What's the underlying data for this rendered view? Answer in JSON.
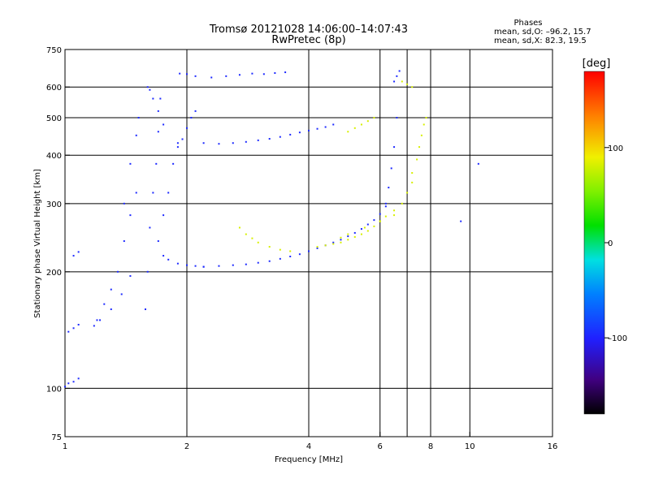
{
  "chart_data": {
    "type": "scatter",
    "title": "Tromsø 20121028 14:06:00–14:07:43",
    "subtitle": "RwPretec (8p)",
    "xlabel": "Frequency [MHz]",
    "ylabel": "Stationary phase Virtual Height [km]",
    "x_scale": "log",
    "y_scale": "log",
    "xlim": [
      1,
      16
    ],
    "ylim": [
      75,
      750
    ],
    "x_ticks": [
      1,
      2,
      4,
      6,
      8,
      10,
      16
    ],
    "x_tick_labels": [
      "1",
      "2",
      "4",
      "6",
      "8",
      "10",
      "16"
    ],
    "x_grid_lines": [
      2,
      4,
      6,
      7,
      8,
      10,
      16
    ],
    "y_ticks": [
      75,
      100,
      200,
      300,
      400,
      500,
      600,
      750
    ],
    "y_tick_labels": [
      "75",
      "100",
      "200",
      "300",
      "400",
      "500",
      "600",
      "750"
    ],
    "y_grid_lines": [
      100,
      200,
      300,
      400,
      500,
      600
    ],
    "grid": true,
    "stats": {
      "heading": "Phases",
      "line1": "mean, sd,O: –96.2, 15.7",
      "line2": "mean, sd,X:  82.3, 19.5"
    },
    "colorbar": {
      "label": "[deg]",
      "range": [
        -180,
        180
      ],
      "ticks": [
        100,
        0,
        -100
      ],
      "tick_labels": [
        "100",
        "0",
        "–100"
      ]
    },
    "colors": {
      "o_mode": "#1a3cff",
      "x_mode": "#c8e614"
    },
    "series": [
      {
        "mode": "O",
        "phase": -96,
        "traces": [
          {
            "f": [
              1.0,
              1.02,
              1.05,
              1.08
            ],
            "h": [
              101,
              103,
              104,
              106
            ]
          },
          {
            "f": [
              1.02,
              1.05,
              1.08
            ],
            "h": [
              140,
              143,
              146
            ]
          },
          {
            "f": [
              1.05,
              1.08
            ],
            "h": [
              220,
              225
            ]
          },
          {
            "f": [
              1.2,
              1.25,
              1.3,
              1.35,
              1.4,
              1.45,
              1.5
            ],
            "h": [
              150,
              165,
              180,
              200,
              240,
              280,
              320
            ]
          },
          {
            "f": [
              1.18,
              1.22,
              1.3,
              1.38,
              1.45
            ],
            "h": [
              145,
              150,
              160,
              175,
              195
            ]
          },
          {
            "f": [
              1.4,
              1.45,
              1.5,
              1.52
            ],
            "h": [
              300,
              380,
              450,
              500
            ]
          },
          {
            "f": [
              1.58,
              1.6,
              1.62,
              1.65,
              1.68,
              1.7,
              1.72
            ],
            "h": [
              160,
              200,
              260,
              320,
              380,
              460,
              560
            ]
          },
          {
            "f": [
              1.6,
              1.62,
              1.65,
              1.7,
              1.75
            ],
            "h": [
              600,
              590,
              560,
              520,
              480
            ]
          },
          {
            "f": [
              1.75,
              1.8,
              1.9,
              2.0,
              2.1,
              2.2
            ],
            "h": [
              220,
              215,
              210,
              208,
              207,
              206
            ]
          },
          {
            "f": [
              1.7,
              1.75,
              1.8,
              1.85,
              1.9
            ],
            "h": [
              240,
              280,
              320,
              380,
              430
            ]
          },
          {
            "f": [
              2.2,
              2.4,
              2.6,
              2.8,
              3.0,
              3.2,
              3.4,
              3.6,
              3.8,
              4.0,
              4.2,
              4.4,
              4.6,
              4.8,
              5.0,
              5.2,
              5.4,
              5.6,
              5.8,
              6.0,
              6.2
            ],
            "h": [
              206,
              207,
              208,
              209,
              211,
              213,
              216,
              219,
              222,
              226,
              230,
              234,
              238,
              242,
              247,
              252,
              258,
              265,
              272,
              282,
              295
            ]
          },
          {
            "f": [
              6.2,
              6.3,
              6.4,
              6.5,
              6.6
            ],
            "h": [
              300,
              330,
              370,
              420,
              500
            ]
          },
          {
            "f": [
              1.9,
              1.95,
              2.0,
              2.05,
              2.1
            ],
            "h": [
              420,
              440,
              470,
              500,
              520
            ]
          },
          {
            "f": [
              2.2,
              2.4,
              2.6,
              2.8,
              3.0,
              3.2,
              3.4,
              3.6,
              3.8,
              4.0,
              4.2,
              4.4,
              4.6
            ],
            "h": [
              430,
              428,
              430,
              433,
              437,
              441,
              446,
              452,
              458,
              463,
              468,
              473,
              480
            ]
          },
          {
            "f": [
              1.92,
              2.0,
              2.1,
              2.3,
              2.5,
              2.7,
              2.9,
              3.1,
              3.3,
              3.5
            ],
            "h": [
              650,
              648,
              640,
              635,
              640,
              645,
              650,
              648,
              652,
              655
            ]
          },
          {
            "f": [
              6.5,
              6.6,
              6.7
            ],
            "h": [
              620,
              640,
              660
            ]
          },
          {
            "f": [
              9.5,
              10.5
            ],
            "h": [
              270,
              380
            ]
          }
        ]
      },
      {
        "mode": "X",
        "phase": 82,
        "traces": [
          {
            "f": [
              2.7,
              2.8,
              2.9,
              3.0,
              3.2,
              3.4,
              3.6
            ],
            "h": [
              260,
              250,
              244,
              238,
              232,
              228,
              226
            ]
          },
          {
            "f": [
              4.2,
              4.4,
              4.6,
              4.8,
              5.0,
              5.2,
              5.4,
              5.6,
              5.8,
              6.0,
              6.2,
              6.5,
              6.8,
              7.0,
              7.2
            ],
            "h": [
              232,
              234,
              236,
              238,
              242,
              246,
              250,
              255,
              262,
              270,
              278,
              288,
              300,
              320,
              340
            ]
          },
          {
            "f": [
              7.2,
              7.4,
              7.5,
              7.6,
              7.7,
              7.8
            ],
            "h": [
              360,
              390,
              420,
              450,
              480,
              500
            ]
          },
          {
            "f": [
              5.0,
              5.2,
              5.4,
              5.6,
              5.8
            ],
            "h": [
              460,
              470,
              480,
              490,
              500
            ]
          },
          {
            "f": [
              4.8,
              5.0,
              5.5,
              6.0,
              6.5
            ],
            "h": [
              245,
              250,
              260,
              270,
              280
            ]
          },
          {
            "f": [
              6.8,
              7.0,
              7.2
            ],
            "h": [
              620,
              610,
              600
            ]
          }
        ]
      }
    ]
  }
}
